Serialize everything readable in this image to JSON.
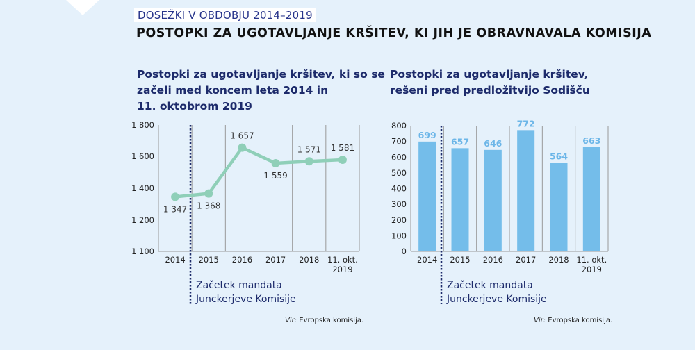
{
  "header": {
    "tag": "DOSEŽKI V OBDOBJU 2014–2019",
    "title": "POSTOPKI ZA UGOTAVLJANJE KRŠITEV, KI JIH JE OBRAVNAVALA KOMISIJA"
  },
  "chart_data": [
    {
      "type": "line",
      "title_lines": [
        "Postopki za ugotavljanje kršitev, ki so se",
        "začeli med koncem leta 2014 in",
        "11. oktobrom 2019"
      ],
      "categories": [
        "2014",
        "2015",
        "2016",
        "2017",
        "2018",
        "11. okt. 2019"
      ],
      "values": [
        1347,
        1368,
        1657,
        1559,
        1571,
        1581
      ],
      "value_labels": [
        "1 347",
        "1 368",
        "1 657",
        "1 559",
        "1 571",
        "1 581"
      ],
      "yticks": [
        "1 800",
        "1 600",
        "1 400",
        "1 200",
        "1 100"
      ],
      "ylim": [
        1100,
        1800
      ],
      "color": "#8fcfb8",
      "annotation": [
        "Začetek mandata",
        "Junckerjeve Komisije"
      ],
      "source_prefix": "Vir:",
      "source": " Evropska komisija."
    },
    {
      "type": "bar",
      "title_lines": [
        "Postopki za ugotavljanje kršitev,",
        "rešeni pred predložitvijo Sodišču"
      ],
      "categories": [
        "2014",
        "2015",
        "2016",
        "2017",
        "2018",
        "11. okt. 2019"
      ],
      "values": [
        699,
        657,
        646,
        772,
        564,
        663
      ],
      "value_labels": [
        "699",
        "657",
        "646",
        "772",
        "564",
        "663"
      ],
      "yticks": [
        "800",
        "700",
        "600",
        "500",
        "400",
        "300",
        "200",
        "100",
        "0"
      ],
      "ylim": [
        0,
        800
      ],
      "color": "#74bdea",
      "label_color": "#6cb6e8",
      "annotation": [
        "Začetek mandata",
        "Junckerjeve Komisije"
      ],
      "source_prefix": "Vir:",
      "source": " Evropska komisija."
    }
  ]
}
